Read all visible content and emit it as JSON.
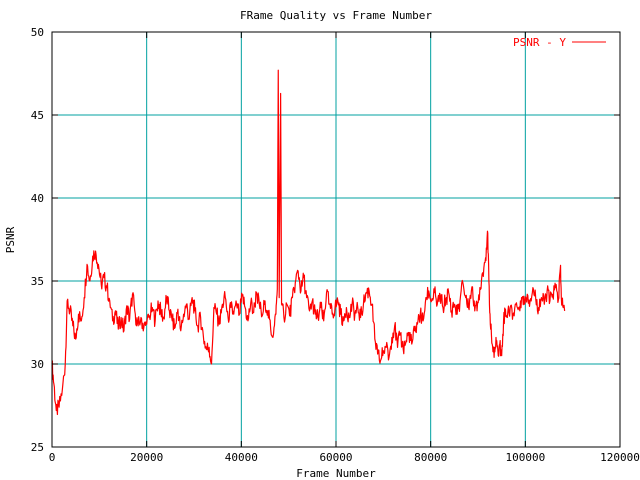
{
  "chart_data": {
    "type": "line",
    "title": "FRame Quality vs Frame Number",
    "xlabel": "Frame Number",
    "ylabel": "PSNR",
    "xlim": [
      0,
      120000
    ],
    "ylim": [
      25,
      50
    ],
    "xticks": [
      0,
      20000,
      40000,
      60000,
      80000,
      100000,
      120000
    ],
    "xtick_labels": [
      "0",
      "20000",
      "40000",
      "60000",
      "80000",
      "100000",
      "120000"
    ],
    "yticks": [
      25,
      30,
      35,
      40,
      45,
      50
    ],
    "ytick_labels": [
      "25",
      "30",
      "35",
      "40",
      "45",
      "50"
    ],
    "grid": true,
    "grid_color": "#00a0a0",
    "legend_position": "top-right",
    "series": [
      {
        "name": "PSNR - Y",
        "color": "#ff0000",
        "points": [
          [
            0,
            30.0
          ],
          [
            400,
            28.8
          ],
          [
            900,
            27.2
          ],
          [
            1500,
            27.4
          ],
          [
            2200,
            28.5
          ],
          [
            2800,
            30.0
          ],
          [
            3200,
            33.8
          ],
          [
            3800,
            33.2
          ],
          [
            4400,
            32.3
          ],
          [
            5000,
            31.5
          ],
          [
            5600,
            33.0
          ],
          [
            6200,
            32.6
          ],
          [
            6800,
            34.0
          ],
          [
            7400,
            36.0
          ],
          [
            8000,
            35.0
          ],
          [
            8600,
            36.5
          ],
          [
            9200,
            36.8
          ],
          [
            9800,
            36.0
          ],
          [
            10400,
            34.8
          ],
          [
            11000,
            35.2
          ],
          [
            11600,
            34.6
          ],
          [
            12200,
            33.8
          ],
          [
            12800,
            32.6
          ],
          [
            13400,
            33.2
          ],
          [
            14000,
            32.1
          ],
          [
            14600,
            32.8
          ],
          [
            15200,
            32.0
          ],
          [
            15800,
            33.5
          ],
          [
            16400,
            32.7
          ],
          [
            17000,
            34.2
          ],
          [
            17600,
            33.0
          ],
          [
            18200,
            32.3
          ],
          [
            18800,
            32.8
          ],
          [
            19400,
            32.2
          ],
          [
            20000,
            32.4
          ],
          [
            20600,
            32.9
          ],
          [
            21200,
            33.4
          ],
          [
            21800,
            32.6
          ],
          [
            22400,
            33.8
          ],
          [
            23000,
            33.1
          ],
          [
            23600,
            32.8
          ],
          [
            24200,
            34.0
          ],
          [
            24800,
            33.2
          ],
          [
            25400,
            32.6
          ],
          [
            26000,
            32.2
          ],
          [
            26600,
            33.3
          ],
          [
            27200,
            32.0
          ],
          [
            27800,
            33.0
          ],
          [
            28400,
            33.6
          ],
          [
            29000,
            32.7
          ],
          [
            29600,
            34.0
          ],
          [
            30200,
            33.2
          ],
          [
            30800,
            32.3
          ],
          [
            31400,
            32.8
          ],
          [
            32000,
            31.6
          ],
          [
            32600,
            30.9
          ],
          [
            33200,
            31.0
          ],
          [
            33700,
            30.0
          ],
          [
            34200,
            33.4
          ],
          [
            34800,
            33.0
          ],
          [
            35400,
            32.4
          ],
          [
            36000,
            33.6
          ],
          [
            36600,
            34.0
          ],
          [
            37200,
            32.8
          ],
          [
            37800,
            33.4
          ],
          [
            38400,
            33.0
          ],
          [
            39000,
            33.6
          ],
          [
            39600,
            33.0
          ],
          [
            40200,
            34.1
          ],
          [
            40800,
            33.4
          ],
          [
            41400,
            32.6
          ],
          [
            42000,
            33.7
          ],
          [
            42600,
            33.1
          ],
          [
            43200,
            34.3
          ],
          [
            43800,
            33.6
          ],
          [
            44400,
            32.9
          ],
          [
            45000,
            33.8
          ],
          [
            45600,
            33.2
          ],
          [
            46200,
            32.1
          ],
          [
            46800,
            31.8
          ],
          [
            47300,
            33.0
          ],
          [
            47600,
            34.5
          ],
          [
            47800,
            47.7
          ],
          [
            48000,
            34.0
          ],
          [
            48300,
            46.3
          ],
          [
            48500,
            33.6
          ],
          [
            49000,
            32.8
          ],
          [
            49600,
            33.6
          ],
          [
            50200,
            32.9
          ],
          [
            50800,
            34.0
          ],
          [
            51400,
            34.9
          ],
          [
            52000,
            35.6
          ],
          [
            52600,
            34.4
          ],
          [
            53200,
            35.2
          ],
          [
            53800,
            34.0
          ],
          [
            54400,
            33.2
          ],
          [
            55000,
            33.8
          ],
          [
            55600,
            33.0
          ],
          [
            56200,
            32.8
          ],
          [
            56800,
            33.4
          ],
          [
            57400,
            32.6
          ],
          [
            58000,
            34.3
          ],
          [
            58600,
            33.6
          ],
          [
            59200,
            33.0
          ],
          [
            59800,
            33.4
          ],
          [
            60400,
            33.8
          ],
          [
            61000,
            33.0
          ],
          [
            61600,
            32.6
          ],
          [
            62200,
            33.4
          ],
          [
            62800,
            32.8
          ],
          [
            63400,
            33.6
          ],
          [
            64000,
            33.0
          ],
          [
            64600,
            33.4
          ],
          [
            65200,
            32.8
          ],
          [
            65800,
            33.6
          ],
          [
            66400,
            34.3
          ],
          [
            67000,
            34.4
          ],
          [
            67600,
            33.6
          ],
          [
            68200,
            31.5
          ],
          [
            68800,
            30.6
          ],
          [
            69400,
            30.2
          ],
          [
            70000,
            30.8
          ],
          [
            70600,
            31.0
          ],
          [
            71200,
            30.4
          ],
          [
            71800,
            31.6
          ],
          [
            72400,
            32.3
          ],
          [
            73000,
            31.0
          ],
          [
            73600,
            31.8
          ],
          [
            74200,
            30.9
          ],
          [
            74800,
            31.4
          ],
          [
            75400,
            31.9
          ],
          [
            76000,
            31.2
          ],
          [
            76600,
            32.0
          ],
          [
            77200,
            32.4
          ],
          [
            77800,
            33.0
          ],
          [
            78400,
            32.6
          ],
          [
            79000,
            34.0
          ],
          [
            79600,
            34.4
          ],
          [
            80200,
            33.8
          ],
          [
            80800,
            34.3
          ],
          [
            81400,
            33.6
          ],
          [
            82000,
            34.2
          ],
          [
            82600,
            33.4
          ],
          [
            83200,
            33.9
          ],
          [
            83800,
            34.3
          ],
          [
            84400,
            33.2
          ],
          [
            85000,
            33.6
          ],
          [
            85600,
            33.0
          ],
          [
            86200,
            33.8
          ],
          [
            86800,
            34.9
          ],
          [
            87400,
            34.0
          ],
          [
            88000,
            33.4
          ],
          [
            88600,
            34.4
          ],
          [
            89200,
            33.8
          ],
          [
            89800,
            33.2
          ],
          [
            90400,
            34.6
          ],
          [
            91000,
            35.5
          ],
          [
            91600,
            36.4
          ],
          [
            92000,
            38.0
          ],
          [
            92300,
            35.0
          ],
          [
            92600,
            32.4
          ],
          [
            93000,
            31.2
          ],
          [
            93400,
            30.4
          ],
          [
            93800,
            31.6
          ],
          [
            94200,
            30.8
          ],
          [
            94600,
            31.2
          ],
          [
            95000,
            30.5
          ],
          [
            95400,
            32.6
          ],
          [
            95800,
            33.3
          ],
          [
            96200,
            32.8
          ],
          [
            96800,
            33.4
          ],
          [
            97400,
            33.0
          ],
          [
            98000,
            33.6
          ],
          [
            98600,
            33.4
          ],
          [
            99200,
            34.0
          ],
          [
            99800,
            33.6
          ],
          [
            100400,
            34.2
          ],
          [
            101000,
            33.8
          ],
          [
            101600,
            34.6
          ],
          [
            102200,
            33.9
          ],
          [
            102800,
            33.4
          ],
          [
            103400,
            34.0
          ],
          [
            104000,
            33.6
          ],
          [
            104600,
            34.4
          ],
          [
            105200,
            33.8
          ],
          [
            105800,
            34.2
          ],
          [
            106400,
            34.6
          ],
          [
            107000,
            33.9
          ],
          [
            107400,
            35.8
          ],
          [
            107600,
            34.0
          ],
          [
            108000,
            33.4
          ],
          [
            108300,
            33.2
          ]
        ]
      }
    ]
  }
}
